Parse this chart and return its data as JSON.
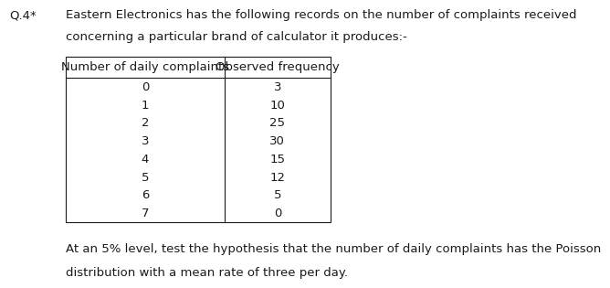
{
  "question_label": "Q.4*",
  "intro_line1": "Eastern Electronics has the following records on the number of complaints received",
  "intro_line2": "concerning a particular brand of calculator it produces:-",
  "col1_header": "Number of daily complaints",
  "col2_header": "Observed frequency",
  "col1_data": [
    "0",
    "1",
    "2",
    "3",
    "4",
    "5",
    "6",
    "7"
  ],
  "col2_data": [
    "3",
    "10",
    "25",
    "30",
    "15",
    "12",
    "5",
    "0"
  ],
  "footer_line1": "At an 5% level, test the hypothesis that the number of daily complaints has the Poisson",
  "footer_line2": "distribution with a mean rate of three per day.",
  "bg_color": "#ffffff",
  "text_color": "#1a1a1a",
  "font_size": 9.5,
  "fig_width": 6.48,
  "fig_height": 3.14
}
